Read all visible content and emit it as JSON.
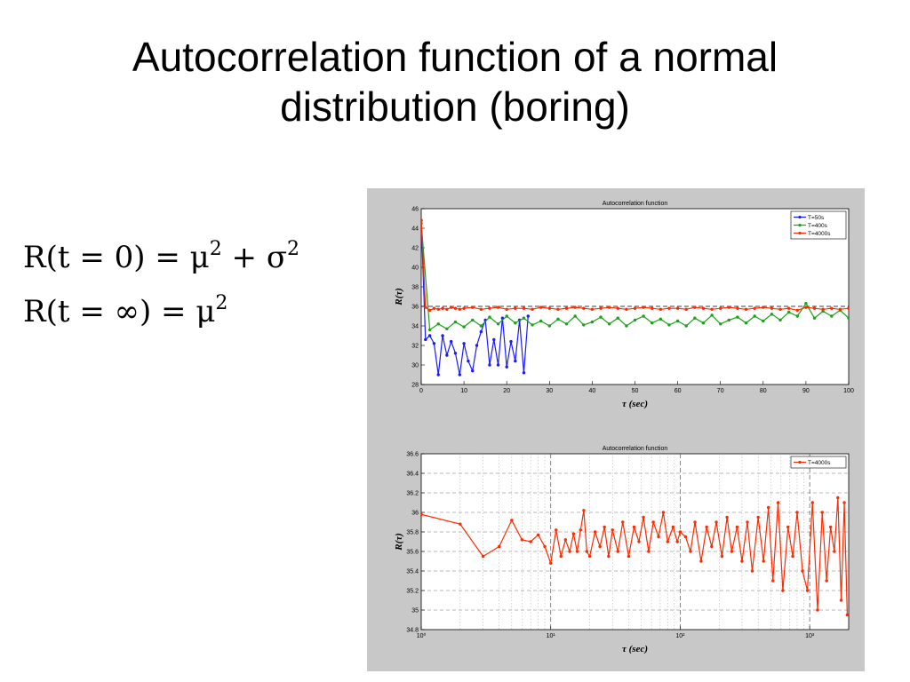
{
  "slide": {
    "title_line1": "Autocorrelation function of a normal",
    "title_line2": "distribution (boring)"
  },
  "formulas": [
    {
      "lhs": "R(t = 0) = μ",
      "exp1": "2",
      "mid": " + σ",
      "exp2": "2"
    },
    {
      "lhs": "R(t = ∞) = μ",
      "exp1": "2",
      "mid": "",
      "exp2": ""
    }
  ],
  "colors": {
    "panel_bg": "#c8c8c8",
    "series_50s": "#1a1aff",
    "series_400s": "#1aa21a",
    "series_4000s": "#ff2a00"
  },
  "chart_data": [
    {
      "type": "line",
      "title": "Autocorrelation function",
      "xlabel": "τ (sec)",
      "ylabel": "R(τ)",
      "xlim": [
        0,
        100
      ],
      "ylim": [
        28,
        46
      ],
      "xticks": [
        0,
        10,
        20,
        30,
        40,
        50,
        60,
        70,
        80,
        90,
        100
      ],
      "yticks": [
        28,
        30,
        32,
        34,
        36,
        38,
        40,
        42,
        44,
        46
      ],
      "grid": false,
      "legend_position": "top-right",
      "reference_line_y": 36,
      "series": [
        {
          "name": "T=50s",
          "color": "#1a1aff",
          "x": [
            0,
            1,
            2,
            3,
            4,
            5,
            6,
            7,
            8,
            9,
            10,
            11,
            12,
            13,
            14,
            15,
            16,
            17,
            18,
            19,
            20,
            21,
            22,
            23,
            24,
            25
          ],
          "y": [
            44.8,
            32.6,
            33,
            32.2,
            29,
            33,
            31,
            32.4,
            31.2,
            29,
            32.2,
            30.4,
            29.4,
            32,
            33.4,
            34.6,
            30,
            32.6,
            30,
            34.8,
            29.8,
            32.4,
            30.4,
            34.6,
            29.2,
            35
          ]
        },
        {
          "name": "T=400s",
          "color": "#1aa21a",
          "x": [
            0,
            2,
            4,
            6,
            8,
            10,
            12,
            14,
            16,
            18,
            20,
            22,
            24,
            26,
            28,
            30,
            32,
            34,
            36,
            38,
            40,
            42,
            44,
            46,
            48,
            50,
            52,
            54,
            56,
            58,
            60,
            62,
            64,
            66,
            68,
            70,
            72,
            74,
            76,
            78,
            80,
            82,
            84,
            86,
            88,
            90,
            92,
            94,
            96,
            98,
            100
          ],
          "y": [
            44.5,
            33.6,
            34.2,
            33.7,
            34.4,
            33.9,
            34.6,
            34.0,
            34.9,
            34.2,
            35.0,
            34.3,
            34.8,
            34.1,
            34.5,
            34.0,
            34.7,
            34.2,
            35.0,
            34.1,
            34.4,
            34.9,
            34.2,
            34.8,
            34.0,
            34.6,
            35.0,
            34.3,
            34.7,
            34.1,
            34.5,
            34.0,
            34.8,
            34.3,
            35.1,
            34.2,
            34.6,
            34.9,
            34.3,
            35.0,
            34.5,
            35.2,
            34.6,
            35.4,
            35.0,
            36.3,
            34.8,
            35.5,
            35.0,
            35.6,
            34.8
          ]
        },
        {
          "name": "T=4000s",
          "color": "#ff2a00",
          "x": [
            0,
            1,
            2,
            3,
            4,
            5,
            6,
            7,
            8,
            9,
            10,
            12,
            14,
            16,
            18,
            20,
            22,
            24,
            26,
            28,
            30,
            32,
            34,
            36,
            38,
            40,
            42,
            44,
            46,
            48,
            50,
            52,
            54,
            56,
            58,
            60,
            62,
            64,
            66,
            68,
            70,
            72,
            74,
            76,
            78,
            80,
            82,
            84,
            86,
            88,
            90,
            92,
            94,
            96,
            98,
            100
          ],
          "y": [
            44.8,
            35.9,
            35.6,
            35.8,
            35.7,
            35.8,
            35.7,
            35.9,
            35.8,
            35.7,
            35.8,
            35.9,
            35.7,
            35.8,
            35.9,
            35.7,
            35.8,
            35.8,
            35.7,
            35.9,
            35.8,
            35.7,
            35.8,
            35.9,
            35.8,
            35.7,
            35.8,
            35.9,
            35.8,
            35.7,
            35.8,
            35.9,
            35.8,
            35.7,
            35.8,
            35.8,
            35.7,
            35.9,
            35.8,
            35.7,
            35.8,
            35.9,
            35.8,
            35.7,
            35.8,
            35.9,
            35.8,
            35.7,
            35.8,
            35.6,
            35.9,
            35.8,
            35.7,
            35.8,
            35.7,
            35.8
          ]
        }
      ]
    },
    {
      "type": "line",
      "title": "Autocorrelation function",
      "xlabel": "τ (sec)",
      "ylabel": "R(τ)",
      "xscale": "log",
      "xlim": [
        1,
        2000
      ],
      "ylim": [
        34.8,
        36.6
      ],
      "xtick_labels": [
        "10⁰",
        "10¹",
        "10²",
        "10³"
      ],
      "yticks": [
        34.8,
        35,
        35.2,
        35.4,
        35.6,
        35.8,
        36,
        36.2,
        36.4,
        36.6
      ],
      "grid": true,
      "legend_position": "top-right",
      "series": [
        {
          "name": "T=4000s",
          "color": "#ff2a00",
          "x": [
            1,
            2,
            3,
            4,
            5,
            6,
            7,
            8,
            9,
            10,
            11,
            12,
            13,
            14,
            15,
            16,
            17,
            18,
            19,
            20,
            22,
            24,
            26,
            28,
            30,
            33,
            36,
            40,
            44,
            48,
            52,
            57,
            62,
            68,
            74,
            80,
            88,
            95,
            100,
            110,
            120,
            130,
            145,
            160,
            175,
            190,
            210,
            230,
            250,
            275,
            300,
            330,
            360,
            400,
            440,
            480,
            520,
            570,
            620,
            680,
            740,
            800,
            880,
            960,
            1050,
            1150,
            1250,
            1350,
            1450,
            1550,
            1650,
            1750,
            1850,
            1950
          ],
          "y": [
            35.98,
            35.88,
            35.55,
            35.65,
            35.92,
            35.72,
            35.7,
            35.77,
            35.65,
            35.48,
            35.82,
            35.55,
            35.72,
            35.6,
            35.78,
            35.6,
            35.82,
            36.02,
            35.6,
            35.55,
            35.8,
            35.65,
            35.85,
            35.55,
            35.82,
            35.6,
            35.9,
            35.55,
            35.85,
            35.7,
            35.95,
            35.6,
            35.9,
            35.75,
            36.0,
            35.7,
            35.85,
            35.7,
            35.8,
            35.75,
            35.6,
            35.9,
            35.5,
            35.85,
            35.65,
            35.9,
            35.55,
            35.95,
            35.6,
            35.85,
            35.5,
            35.9,
            35.4,
            35.95,
            35.5,
            36.05,
            35.3,
            36.1,
            35.2,
            35.85,
            35.55,
            36.0,
            35.4,
            35.2,
            36.1,
            35.0,
            36.0,
            35.3,
            35.85,
            35.6,
            36.15,
            35.1,
            36.1,
            34.95
          ]
        }
      ]
    }
  ]
}
